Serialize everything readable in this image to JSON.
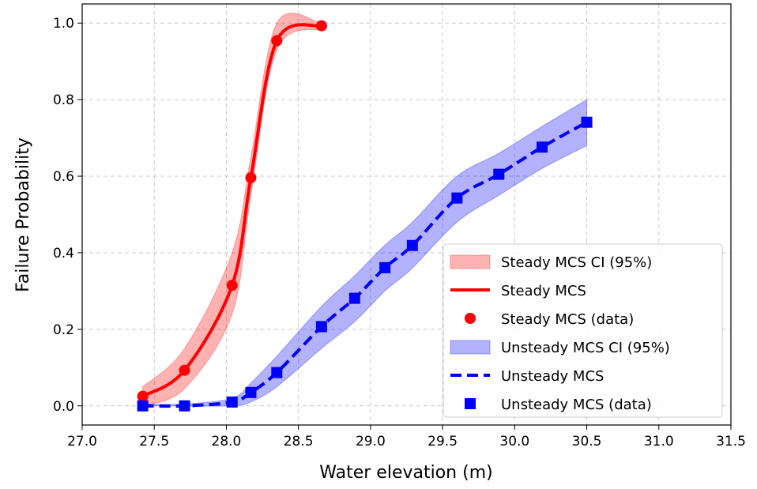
{
  "chart_data": {
    "type": "line",
    "title": "",
    "xlabel": "Water elevation (m)",
    "ylabel": "Failure Probability",
    "xlim": [
      27.0,
      31.5
    ],
    "ylim": [
      -0.05,
      1.05
    ],
    "xticks": [
      "27.0",
      "27.5",
      "28.0",
      "28.5",
      "29.0",
      "29.5",
      "30.0",
      "30.5",
      "31.0",
      "31.5"
    ],
    "yticks": [
      "0.0",
      "0.2",
      "0.4",
      "0.6",
      "0.8",
      "1.0"
    ],
    "grid": true,
    "legend_position": "lower-right",
    "series": [
      {
        "name": "Steady MCS",
        "ci_name": "Steady MCS CI (95%)",
        "data_name": "Steady MCS (data)",
        "color": "#ff0000",
        "marker": "circle",
        "dash": false,
        "x": [
          27.42,
          27.71,
          28.04,
          28.17,
          28.35,
          28.66
        ],
        "y": [
          0.025,
          0.093,
          0.315,
          0.596,
          0.954,
          0.993
        ],
        "ci_lower": [
          0.0,
          0.045,
          0.24,
          0.55,
          0.93,
          0.985
        ],
        "ci_upper": [
          0.05,
          0.15,
          0.4,
          0.65,
          1.0,
          1.0
        ]
      },
      {
        "name": "Unsteady MCS",
        "ci_name": "Unsteady MCS CI (95%)",
        "data_name": "Unsteady MCS (data)",
        "color": "#0000ff",
        "marker": "square",
        "dash": true,
        "x": [
          27.42,
          27.71,
          28.04,
          28.17,
          28.35,
          28.66,
          28.89,
          29.1,
          29.29,
          29.6,
          29.89,
          30.19,
          30.5
        ],
        "y": [
          0.0,
          0.0,
          0.01,
          0.035,
          0.087,
          0.207,
          0.281,
          0.361,
          0.419,
          0.543,
          0.605,
          0.676,
          0.741
        ],
        "ci_lower": [
          0.0,
          0.0,
          0.0,
          0.01,
          0.05,
          0.15,
          0.22,
          0.3,
          0.36,
          0.48,
          0.55,
          0.62,
          0.68
        ],
        "ci_upper": [
          0.005,
          0.005,
          0.02,
          0.06,
          0.13,
          0.26,
          0.34,
          0.42,
          0.48,
          0.6,
          0.66,
          0.73,
          0.8
        ]
      }
    ]
  }
}
